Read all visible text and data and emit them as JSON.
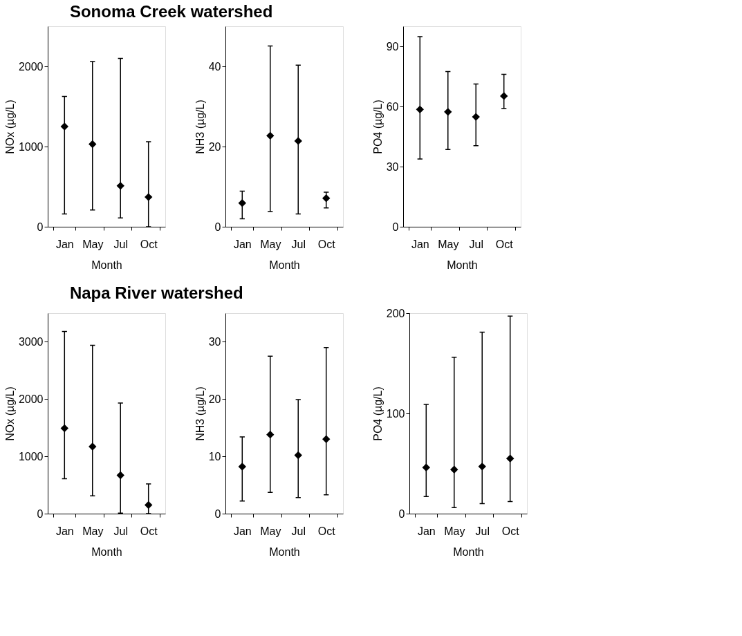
{
  "chart_data": [
    {
      "type": "scatter",
      "title": "Sonoma Creek watershed",
      "xlabel": "Month",
      "ylabel": "NOx (µg/L)",
      "categories": [
        "Jan",
        "May",
        "Jul",
        "Oct"
      ],
      "values": [
        1250,
        1030,
        510,
        370
      ],
      "errors": [
        [
          160,
          1625
        ],
        [
          210,
          2060
        ],
        [
          110,
          2100
        ],
        [
          0,
          1060
        ]
      ],
      "ylim": [
        0,
        2500
      ],
      "yticks": [
        0,
        1000,
        2000
      ],
      "marker": "diamond",
      "color": "#000000",
      "grid": false
    },
    {
      "type": "scatter",
      "xlabel": "Month",
      "ylabel": "NH3 (µg/L)",
      "categories": [
        "Jan",
        "May",
        "Jul",
        "Oct"
      ],
      "values": [
        5.9,
        22.7,
        21.4,
        7.1
      ],
      "errors": [
        [
          2.0,
          8.9
        ],
        [
          3.8,
          45.1
        ],
        [
          3.2,
          40.3
        ],
        [
          4.7,
          8.6
        ]
      ],
      "ylim": [
        0,
        50
      ],
      "yticks": [
        0,
        20,
        40
      ],
      "marker": "diamond",
      "color": "#000000",
      "grid": false
    },
    {
      "type": "scatter",
      "xlabel": "Month",
      "ylabel": "PO4 (µg/L)",
      "categories": [
        "Jan",
        "May",
        "Jul",
        "Oct"
      ],
      "values": [
        58.5,
        57.3,
        54.8,
        65.2
      ],
      "errors": [
        [
          33.8,
          94.8
        ],
        [
          38.5,
          77.4
        ],
        [
          40.4,
          71.2
        ],
        [
          59,
          76
        ]
      ],
      "ylim": [
        0,
        100
      ],
      "yticks": [
        0,
        30,
        60,
        90
      ],
      "marker": "diamond",
      "color": "#000000",
      "grid": false
    },
    {
      "type": "scatter",
      "title": "Napa River watershed",
      "xlabel": "Month",
      "ylabel": "NOx (µg/L)",
      "categories": [
        "Jan",
        "May",
        "Jul",
        "Oct"
      ],
      "values": [
        1490,
        1170,
        670,
        150
      ],
      "errors": [
        [
          610,
          3180
        ],
        [
          310,
          2940
        ],
        [
          10,
          1930
        ],
        [
          0,
          520
        ]
      ],
      "ylim": [
        0,
        3500
      ],
      "yticks": [
        0,
        1000,
        2000,
        3000
      ],
      "marker": "diamond",
      "color": "#000000",
      "grid": false
    },
    {
      "type": "scatter",
      "xlabel": "Month",
      "ylabel": "NH3 (µg/L)",
      "categories": [
        "Jan",
        "May",
        "Jul",
        "Oct"
      ],
      "values": [
        8.2,
        13.8,
        10.2,
        13.0
      ],
      "errors": [
        [
          2.2,
          13.4
        ],
        [
          3.7,
          27.5
        ],
        [
          2.8,
          19.9
        ],
        [
          3.3,
          29.0
        ]
      ],
      "ylim": [
        0,
        35
      ],
      "yticks": [
        0,
        10,
        20,
        30
      ],
      "marker": "diamond",
      "color": "#000000",
      "grid": false
    },
    {
      "type": "scatter",
      "xlabel": "Month",
      "ylabel": "PO4 (µg/L)",
      "categories": [
        "Jan",
        "May",
        "Jul",
        "Oct"
      ],
      "values": [
        46,
        44,
        47,
        55
      ],
      "errors": [
        [
          17,
          109
        ],
        [
          6,
          156
        ],
        [
          10,
          181
        ],
        [
          12,
          197
        ]
      ],
      "ylim": [
        0,
        200
      ],
      "yticks": [
        0,
        100,
        200
      ],
      "marker": "diamond",
      "color": "#000000",
      "grid": false
    }
  ]
}
